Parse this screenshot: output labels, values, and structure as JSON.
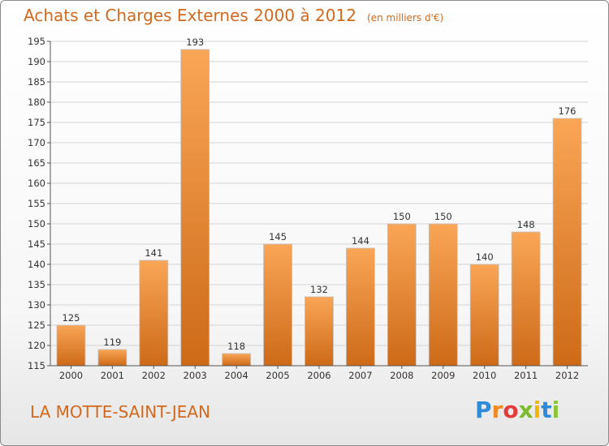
{
  "header": {
    "title": "Achats et Charges Externes 2000 à 2012",
    "unit": "(en milliers d'€)"
  },
  "footer": {
    "town": "LA MOTTE-SAINT-JEAN",
    "logo_letters": [
      "P",
      "r",
      "o",
      "x",
      "i",
      "t",
      "i"
    ],
    "logo_colors": [
      "#2f8bd8",
      "#f08a24",
      "#e23c3c",
      "#7dbb2e",
      "#f2b700",
      "#2f8bd8",
      "#8ac53a"
    ]
  },
  "colors": {
    "bar_light": "#f9a656",
    "bar_dark": "#cd6a18",
    "grid": "#d4d4d4",
    "axis": "#555555"
  },
  "chart_data": {
    "type": "bar",
    "title": "Achats et Charges Externes 2000 à 2012",
    "subtitle": "(en milliers d'€)",
    "categories": [
      "2000",
      "2001",
      "2002",
      "2003",
      "2004",
      "2005",
      "2006",
      "2007",
      "2008",
      "2009",
      "2010",
      "2011",
      "2012"
    ],
    "values": [
      125,
      119,
      141,
      193,
      118,
      145,
      132,
      144,
      150,
      150,
      140,
      148,
      176
    ],
    "ylim": [
      115,
      195
    ],
    "yticks": [
      115,
      120,
      125,
      130,
      135,
      140,
      145,
      150,
      155,
      160,
      165,
      170,
      175,
      180,
      185,
      190,
      195
    ],
    "xlabel": "",
    "ylabel": "",
    "grid": true,
    "legend": "none",
    "data_labels": true
  }
}
